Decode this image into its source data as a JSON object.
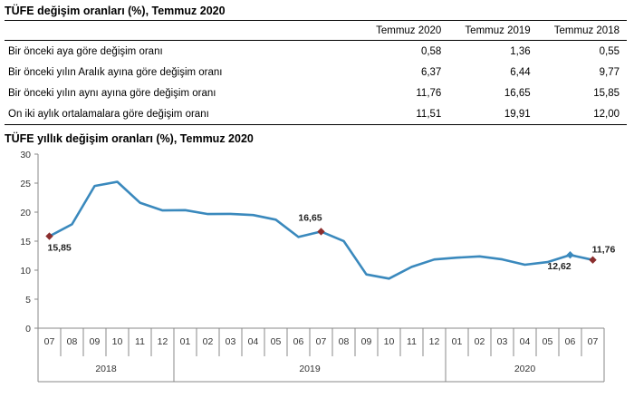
{
  "table": {
    "title": "TÜFE değişim oranları (%), Temmuz 2020",
    "columns": [
      "",
      "Temmuz 2020",
      "Temmuz 2019",
      "Temmuz 2018"
    ],
    "rows": [
      {
        "label": "Bir önceki aya göre değişim oranı",
        "values": [
          "0,58",
          "1,36",
          "0,55"
        ]
      },
      {
        "label": "Bir önceki yılın Aralık ayına göre değişim oranı",
        "values": [
          "6,37",
          "6,44",
          "9,77"
        ]
      },
      {
        "label": "Bir önceki yılın aynı ayına göre değişim oranı",
        "values": [
          "11,76",
          "16,65",
          "15,85"
        ]
      },
      {
        "label": "On iki aylık ortalamalara göre değişim oranı",
        "values": [
          "11,51",
          "19,91",
          "12,00"
        ]
      }
    ]
  },
  "chart_data": {
    "type": "line",
    "title": "TÜFE yıllık değişim oranları (%), Temmuz 2020",
    "xlabel": "",
    "ylabel": "",
    "ylim": [
      0,
      30
    ],
    "yticks": [
      0,
      5,
      10,
      15,
      20,
      25,
      30
    ],
    "categories": [
      "07",
      "08",
      "09",
      "10",
      "11",
      "12",
      "01",
      "02",
      "03",
      "04",
      "05",
      "06",
      "07",
      "08",
      "09",
      "10",
      "11",
      "12",
      "01",
      "02",
      "03",
      "04",
      "05",
      "06",
      "07"
    ],
    "year_groups": [
      {
        "year": "2018",
        "start": 0,
        "end": 5
      },
      {
        "year": "2019",
        "start": 6,
        "end": 17
      },
      {
        "year": "2020",
        "start": 18,
        "end": 24
      }
    ],
    "series": [
      {
        "name": "TÜFE yıllık değişim oranı (%)",
        "color": "#3a89bd",
        "values": [
          15.85,
          17.9,
          24.52,
          25.24,
          21.62,
          20.3,
          20.35,
          19.67,
          19.71,
          19.5,
          18.71,
          15.72,
          16.65,
          15.01,
          9.26,
          8.55,
          10.56,
          11.84,
          12.15,
          12.37,
          11.86,
          10.94,
          11.39,
          12.62,
          11.76
        ]
      }
    ],
    "annotations": [
      {
        "index": 0,
        "label": "15,85",
        "marker": "diamond",
        "color": "#8b2e2e"
      },
      {
        "index": 12,
        "label": "16,65",
        "marker": "diamond",
        "color": "#8b2e2e"
      },
      {
        "index": 23,
        "label": "12,62",
        "marker": "diamond",
        "color": "#3a89bd"
      },
      {
        "index": 24,
        "label": "11,76",
        "marker": "diamond",
        "color": "#8b2e2e"
      }
    ]
  }
}
